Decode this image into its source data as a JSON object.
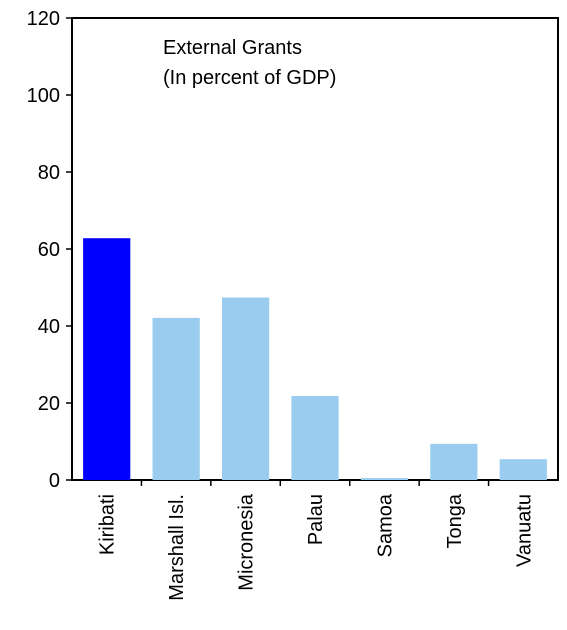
{
  "chart_data": {
    "type": "bar",
    "title": "External Grants",
    "subtitle": "(In percent of GDP)",
    "xlabel": "",
    "ylabel": "",
    "categories": [
      "Kiribati",
      "Marshall Isl.",
      "Micronesia",
      "Palau",
      "Samoa",
      "Tonga",
      "Vanuatu"
    ],
    "values": [
      62.8,
      42.1,
      47.4,
      21.8,
      0.5,
      9.4,
      5.4
    ],
    "highlight_index": 0,
    "ylim": [
      0,
      120
    ],
    "yticks": [
      0,
      20,
      40,
      60,
      80,
      100,
      120
    ],
    "grid": false,
    "legend": "none"
  },
  "colors": {
    "highlight": "#0000FF",
    "bar": "#99CCEE",
    "axis": "#000000"
  }
}
